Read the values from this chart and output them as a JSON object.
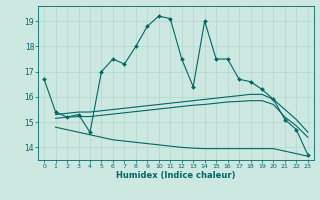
{
  "title": "",
  "xlabel": "Humidex (Indice chaleur)",
  "bg_color": "#cce8e0",
  "grid_color": "#b0d8cc",
  "line_color": "#006666",
  "xlim": [
    -0.5,
    23.5
  ],
  "ylim": [
    13.5,
    19.6
  ],
  "yticks": [
    14,
    15,
    16,
    17,
    18,
    19
  ],
  "xticks": [
    0,
    1,
    2,
    3,
    4,
    5,
    6,
    7,
    8,
    9,
    10,
    11,
    12,
    13,
    14,
    15,
    16,
    17,
    18,
    19,
    20,
    21,
    22,
    23
  ],
  "line1_x": [
    0,
    1,
    2,
    3,
    4,
    5,
    6,
    7,
    8,
    9,
    10,
    11,
    12,
    13,
    14,
    15,
    16,
    17,
    18,
    19,
    20,
    21,
    22,
    23
  ],
  "line1_y": [
    16.7,
    15.4,
    15.2,
    15.3,
    14.6,
    17.0,
    17.5,
    17.3,
    18.0,
    18.8,
    19.2,
    19.1,
    17.5,
    16.4,
    19.0,
    17.5,
    17.5,
    16.7,
    16.6,
    16.3,
    15.9,
    15.1,
    14.7,
    13.7
  ],
  "line2_x": [
    1,
    2,
    3,
    4,
    5,
    6,
    7,
    8,
    9,
    10,
    11,
    12,
    13,
    14,
    15,
    16,
    17,
    18,
    19,
    20,
    21,
    22,
    23
  ],
  "line2_y": [
    15.3,
    15.35,
    15.4,
    15.4,
    15.45,
    15.5,
    15.55,
    15.6,
    15.65,
    15.7,
    15.75,
    15.8,
    15.85,
    15.9,
    15.95,
    16.0,
    16.05,
    16.1,
    16.1,
    15.9,
    15.5,
    15.1,
    14.6
  ],
  "line3_x": [
    1,
    2,
    3,
    4,
    5,
    6,
    7,
    8,
    9,
    10,
    11,
    12,
    13,
    14,
    15,
    16,
    17,
    18,
    19,
    20,
    21,
    22,
    23
  ],
  "line3_y": [
    15.15,
    15.2,
    15.22,
    15.22,
    15.27,
    15.32,
    15.37,
    15.42,
    15.47,
    15.52,
    15.57,
    15.62,
    15.67,
    15.7,
    15.75,
    15.8,
    15.82,
    15.85,
    15.85,
    15.7,
    15.2,
    14.85,
    14.4
  ],
  "line4_x": [
    1,
    2,
    3,
    4,
    5,
    6,
    7,
    8,
    9,
    10,
    11,
    12,
    13,
    14,
    15,
    16,
    17,
    18,
    19,
    20,
    21,
    22,
    23
  ],
  "line4_y": [
    14.8,
    14.7,
    14.6,
    14.5,
    14.4,
    14.3,
    14.25,
    14.2,
    14.15,
    14.1,
    14.05,
    14.0,
    13.97,
    13.95,
    13.95,
    13.95,
    13.95,
    13.95,
    13.95,
    13.95,
    13.85,
    13.75,
    13.65
  ]
}
